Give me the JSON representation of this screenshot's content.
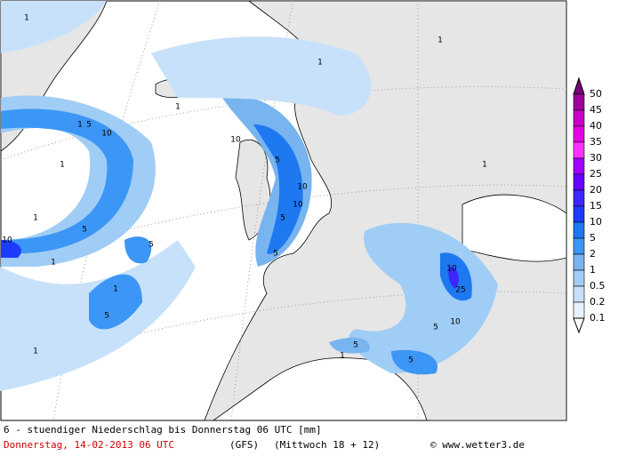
{
  "map": {
    "contour_labels": [
      "1",
      "1",
      "5",
      "10",
      "1",
      "5",
      "10",
      "1",
      "1",
      "10",
      "5",
      "10",
      "10",
      "5",
      "1",
      "5",
      "1",
      "5",
      "1",
      "5",
      "10",
      "25",
      "10",
      "5",
      "5",
      "5",
      "1",
      "1",
      "1",
      "1"
    ]
  },
  "legend": {
    "labels": [
      "50",
      "45",
      "40",
      "35",
      "30",
      "25",
      "20",
      "15",
      "10",
      "5",
      "2",
      "1",
      "0.5",
      "0.2",
      "0.1"
    ],
    "colors": [
      "#780078",
      "#a000a0",
      "#c800c8",
      "#e600e6",
      "#ff32ff",
      "#a000ff",
      "#6400ff",
      "#3c28ff",
      "#1e3cff",
      "#1e78f0",
      "#3c96f5",
      "#78b4f0",
      "#a0cdf5",
      "#c8e1fa",
      "#e6f2ff",
      "#ffffff"
    ]
  },
  "footer": {
    "title": "6 - stuendiger Niederschlag bis Donnerstag 06 UTC [mm]",
    "date": "Donnerstag, 14-02-2013  06 UTC",
    "model": "(GFS)",
    "run": "(Mittwoch 18 + 12)",
    "credit": "© www.wetter3.de"
  }
}
